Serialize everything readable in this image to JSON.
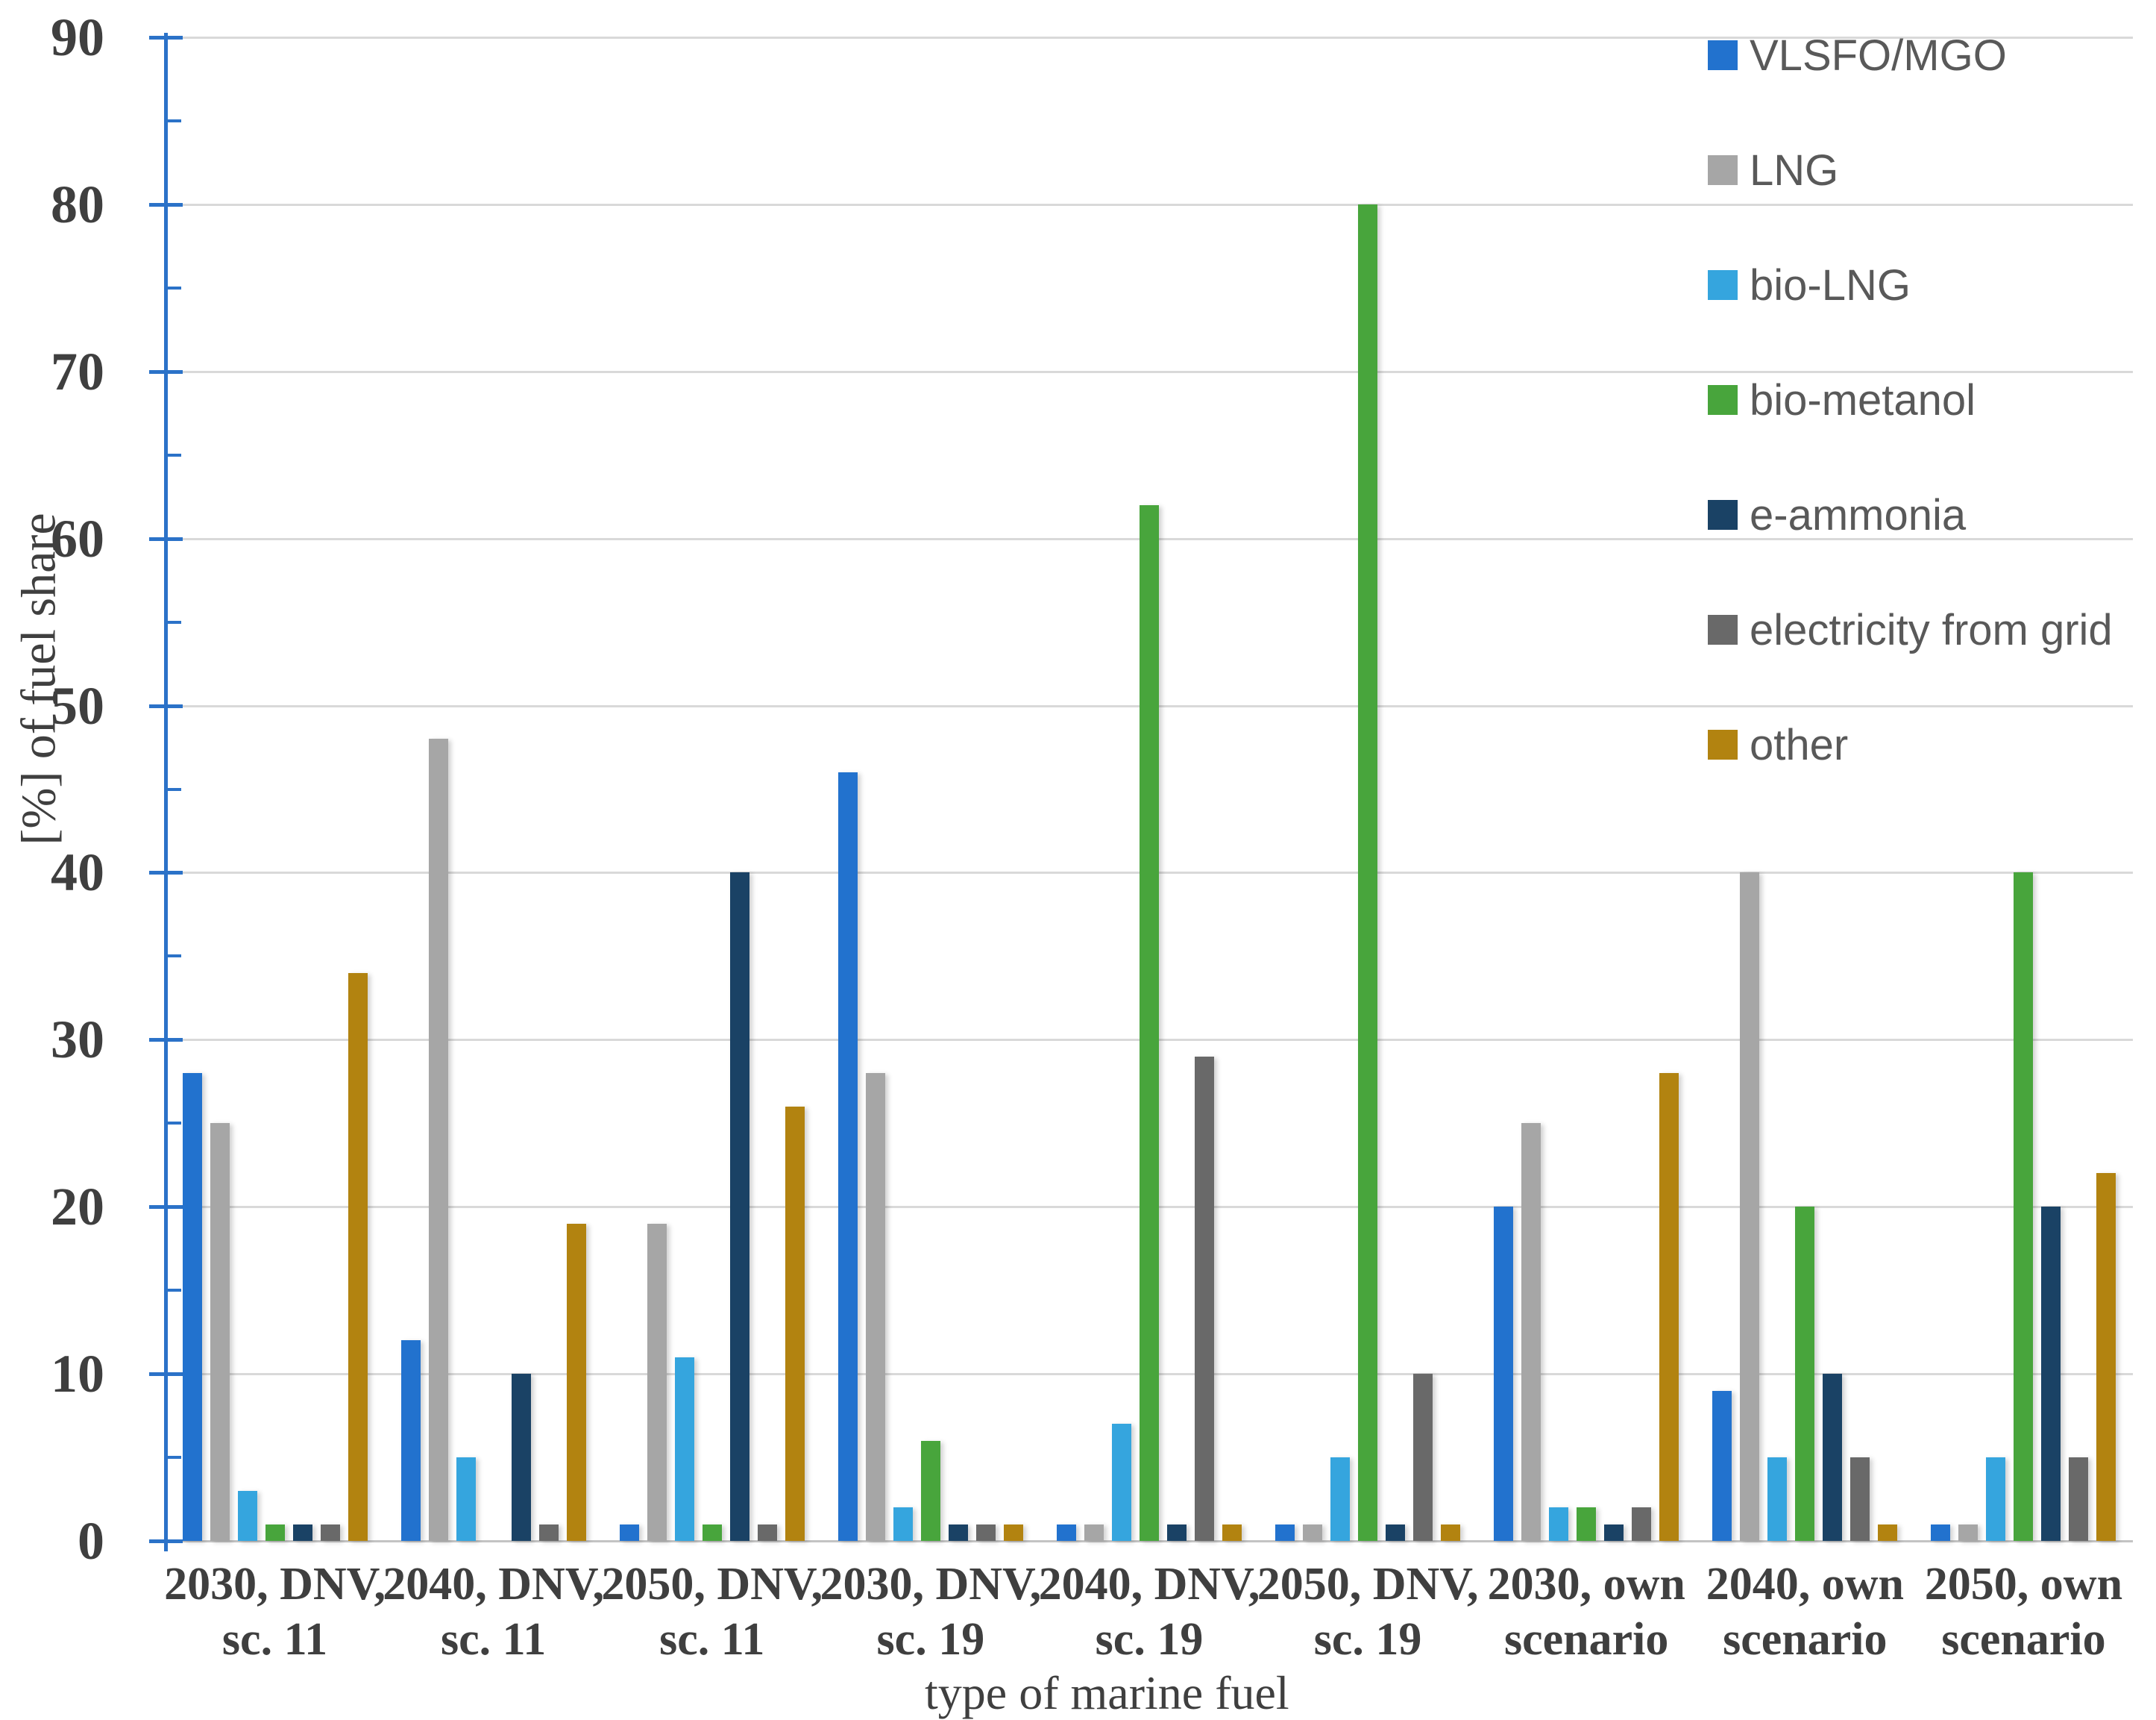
{
  "chart_data": {
    "type": "bar",
    "title": "",
    "xlabel": "type of marine fuel",
    "ylabel": "[%] of fuel share",
    "ylim": [
      0,
      90
    ],
    "y_tick_step": 10,
    "y_minor_tick_step": 5,
    "grid": "horizontal",
    "legend_position": "top-right",
    "y_tick_labels": [
      "0",
      "10",
      "20",
      "30",
      "40",
      "50",
      "60",
      "70",
      "80",
      "90"
    ],
    "categories": [
      {
        "line1": "2030, DNV,",
        "line2": "sc. 11"
      },
      {
        "line1": "2040, DNV,",
        "line2": "sc. 11"
      },
      {
        "line1": "2050, DNV,",
        "line2": "sc. 11"
      },
      {
        "line1": "2030, DNV,",
        "line2": "sc. 19"
      },
      {
        "line1": "2040, DNV,",
        "line2": "sc. 19"
      },
      {
        "line1": "2050, DNV,",
        "line2": "sc. 19"
      },
      {
        "line1": "2030, own",
        "line2": "scenario"
      },
      {
        "line1": "2040, own",
        "line2": "scenario"
      },
      {
        "line1": "2050, own",
        "line2": "scenario"
      }
    ],
    "series": [
      {
        "name": "VLSFO/MGO",
        "color": "#2272CE",
        "values": [
          28,
          12,
          1,
          46,
          1,
          1,
          20,
          9,
          1
        ]
      },
      {
        "name": "LNG",
        "color": "#A6A6A6",
        "values": [
          25,
          48,
          19,
          28,
          1,
          1,
          25,
          40,
          1
        ]
      },
      {
        "name": "bio-LNG",
        "color": "#35A5DE",
        "values": [
          3,
          5,
          11,
          2,
          7,
          5,
          2,
          5,
          5
        ]
      },
      {
        "name": "bio-metanol",
        "color": "#48A53C",
        "values": [
          1,
          0,
          1,
          6,
          62,
          80,
          2,
          20,
          40
        ]
      },
      {
        "name": "e-ammonia",
        "color": "#1A4265",
        "values": [
          1,
          10,
          40,
          1,
          1,
          1,
          1,
          10,
          20
        ]
      },
      {
        "name": "electricity from grid",
        "color": "#696969",
        "values": [
          1,
          1,
          1,
          1,
          29,
          10,
          2,
          5,
          5
        ]
      },
      {
        "name": "other",
        "color": "#B28310",
        "values": [
          34,
          19,
          26,
          1,
          1,
          1,
          28,
          1,
          22
        ]
      }
    ]
  },
  "colors": {
    "axis_line": "#2B72C8",
    "gridline": "#D9D9D9",
    "baseline": "#C4C4C4",
    "tick_label": "#3F3F3F",
    "legend_text": "#595959",
    "background": "#FFFFFF"
  }
}
